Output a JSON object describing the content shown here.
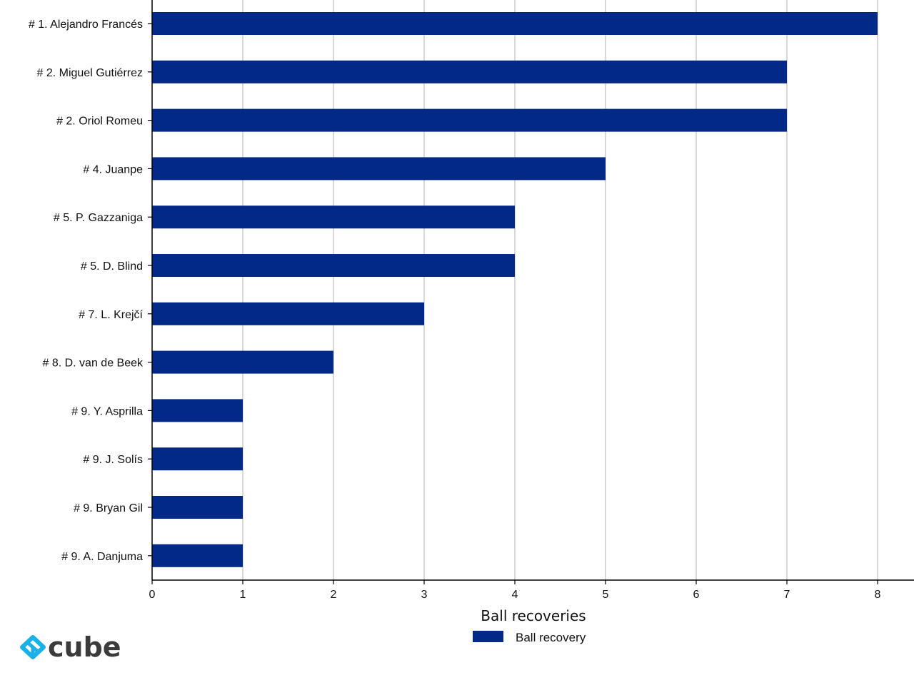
{
  "chart_data": {
    "type": "bar",
    "orientation": "horizontal",
    "categories": [
      "# 1.  Alejandro Francés",
      "# 2.  Miguel Gutiérrez",
      "# 2.  Oriol Romeu",
      "# 4.  Juanpe",
      "# 5.  P. Gazzaniga",
      "# 5.  D. Blind",
      "# 7.  L. Krejčí",
      "# 8.  D. van de Beek",
      "# 9.  Y. Asprilla",
      "# 9.  J. Solís",
      "# 9.  Bryan Gil",
      "# 9.  A. Danjuma"
    ],
    "series": [
      {
        "name": "Ball recovery",
        "values": [
          8,
          7,
          7,
          5,
          4,
          4,
          3,
          2,
          1,
          1,
          1,
          1
        ],
        "color": "#022888"
      }
    ],
    "xlabel": "Ball recoveries",
    "ylabel": "",
    "xlim": [
      0,
      8.4
    ],
    "xticks": [
      0,
      1,
      2,
      3,
      4,
      5,
      6,
      7,
      8
    ],
    "grid": "vertical",
    "legend_position": "bottom-center"
  },
  "logo": {
    "text": "cube",
    "color": "#1ab0e8"
  }
}
